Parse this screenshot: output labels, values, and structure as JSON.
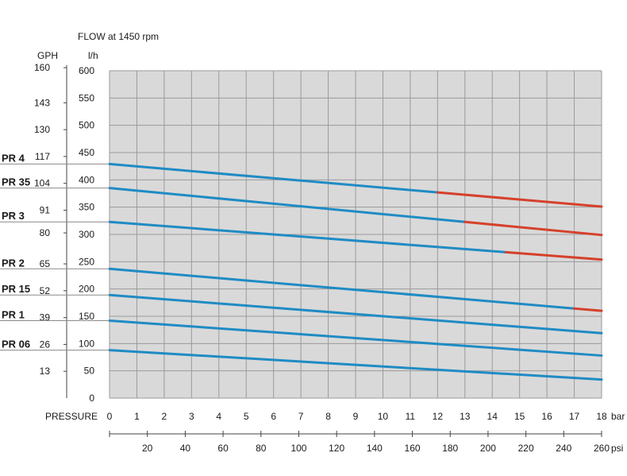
{
  "chart_data": {
    "type": "line",
    "title": "FLOW at 1450 rpm",
    "y_left_unit": "GPH",
    "y_right_unit": "l/h",
    "x_label": "PRESSURE",
    "x_unit_bar": "bar",
    "x_unit_psi": "psi",
    "bar_ticks": [
      "0",
      "1",
      "2",
      "3",
      "4",
      "5",
      "6",
      "7",
      "8",
      "9",
      "10",
      "11",
      "12",
      "13",
      "14",
      "15",
      "16",
      "17",
      "18"
    ],
    "psi_ticks": [
      "20",
      "40",
      "60",
      "80",
      "100",
      "120",
      "140",
      "160",
      "180",
      "200",
      "220",
      "240",
      "260"
    ],
    "lh_ticks": [
      "0",
      "50",
      "100",
      "150",
      "200",
      "250",
      "300",
      "350",
      "400",
      "450",
      "500",
      "550",
      "600"
    ],
    "gph_ticks": [
      "13",
      "26",
      "39",
      "52",
      "65",
      "80",
      "91",
      "104",
      "117",
      "130",
      "143",
      "160"
    ],
    "xlim": [
      0,
      18
    ],
    "ylim": [
      0,
      600
    ],
    "grid": true,
    "colors": {
      "normal": "#1f8bc4",
      "limit": "#d6402b",
      "plot_bg": "#d9d9d9",
      "grid": "#9a9a9a"
    },
    "series": [
      {
        "name": "PR 4",
        "start": [
          0,
          429
        ],
        "end": [
          18,
          351
        ],
        "limit_from_bar": 12
      },
      {
        "name": "PR 35",
        "start": [
          0,
          385
        ],
        "end": [
          18,
          299
        ],
        "limit_from_bar": 13
      },
      {
        "name": "PR 3",
        "start": [
          0,
          323
        ],
        "end": [
          18,
          254
        ],
        "limit_from_bar": 14.5
      },
      {
        "name": "PR 2",
        "start": [
          0,
          237
        ],
        "end": [
          18,
          160
        ],
        "limit_from_bar": 17
      },
      {
        "name": "PR 15",
        "start": [
          0,
          189
        ],
        "end": [
          18,
          119
        ]
      },
      {
        "name": "PR 1",
        "start": [
          0,
          142
        ],
        "end": [
          18,
          78
        ]
      },
      {
        "name": "PR 06",
        "start": [
          0,
          88
        ],
        "end": [
          18,
          34
        ]
      }
    ]
  }
}
